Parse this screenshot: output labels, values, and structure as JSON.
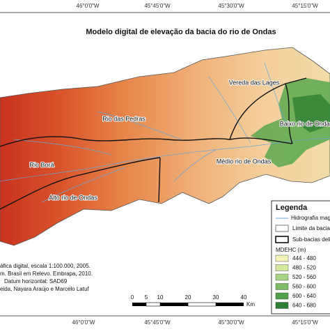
{
  "title": "Modelo digital de elevação da bacia do rio de Ondas",
  "coordinates_top": [
    "46°0'0\"W",
    "45°45'0\"W",
    "45°30'0\"W",
    "45°15'0\"W"
  ],
  "coordinates_bottom": [
    "46°0'0\"W",
    "45°45'0\"W",
    "45°30'0\"W",
    "45°15'0\"W"
  ],
  "regions": [
    "Vereda das Lages",
    "Rio das Pedras",
    "Baixo rio de Ondas",
    "Rio Borá",
    "Médio rio de Ondas",
    "Alto rio de Ondas"
  ],
  "legend": {
    "title": "Legenda",
    "hydrography": "Hidrografia mag",
    "basin_limit": "Limite da bacia",
    "sub_basins": "Sub-bacias deli",
    "elevation_title": "MDEHC (m)",
    "classes": [
      {
        "label": "444 - 480",
        "color": "#f3f5b8"
      },
      {
        "label": "480 - 520",
        "color": "#d5e8a0"
      },
      {
        "label": "520 - 560",
        "color": "#a8d383"
      },
      {
        "label": "560 - 600",
        "color": "#7cbd66"
      },
      {
        "label": "600 - 640",
        "color": "#4fa14a"
      },
      {
        "label": "640 - 680",
        "color": "#2d7f33"
      }
    ]
  },
  "notes": [
    "áfica digital, escala 1:100.000, 2005.",
    "m. Brasil em Relevo. Embrapa, 2010.",
    "Datum horizontal: SAD69",
    "eida, Nayara Araújo e Marcelo Latuf"
  ],
  "scale_bar": {
    "labels": [
      "0",
      "5",
      "10",
      "20",
      "30",
      "40"
    ],
    "unit": "Km"
  }
}
